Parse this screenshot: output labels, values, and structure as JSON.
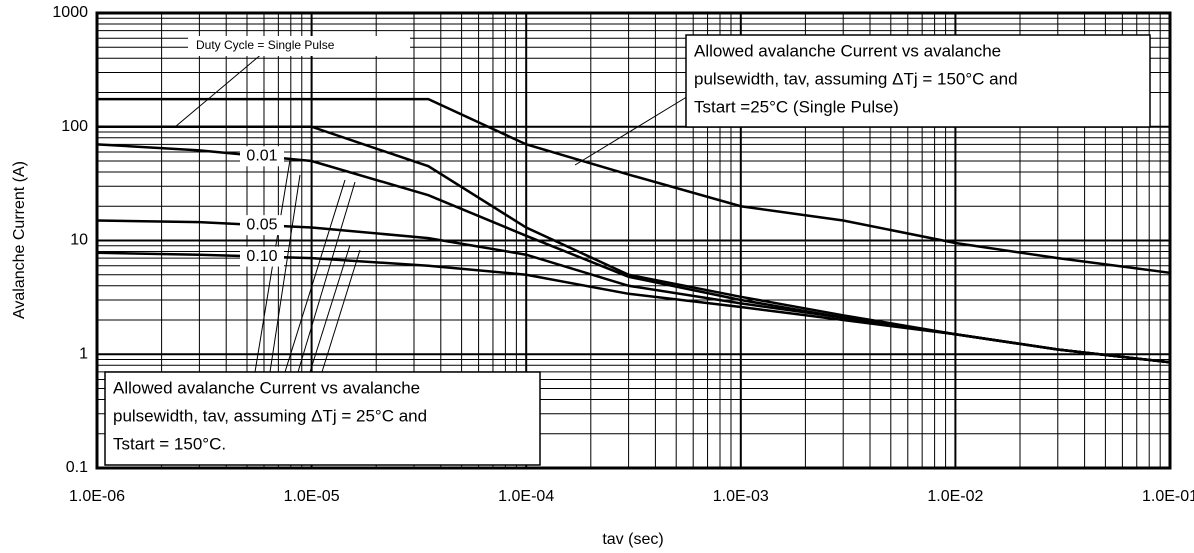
{
  "chart_data": {
    "type": "line",
    "xlabel": "tav (sec)",
    "ylabel": "Avalanche Current (A)",
    "log_x": true,
    "log_y": true,
    "grid": true,
    "xlim": [
      1e-06,
      0.1
    ],
    "ylim": [
      0.1,
      1000
    ],
    "xticks": [
      {
        "value": 1e-06,
        "label": "1.0E-06"
      },
      {
        "value": 1e-05,
        "label": "1.0E-05"
      },
      {
        "value": 0.0001,
        "label": "1.0E-04"
      },
      {
        "value": 0.001,
        "label": "1.0E-03"
      },
      {
        "value": 0.01,
        "label": "1.0E-02"
      },
      {
        "value": 0.1,
        "label": "1.0E-01"
      }
    ],
    "yticks": [
      1000,
      100,
      10,
      1,
      0.1
    ],
    "x": [
      1e-06,
      3e-06,
      1e-05,
      3.5e-05,
      0.0001,
      0.0003,
      0.001,
      0.003,
      0.01,
      0.03,
      0.1
    ],
    "series": [
      {
        "color": "#000000",
        "values": [
          175,
          175,
          175,
          175,
          70,
          38,
          20,
          15,
          9.5,
          7,
          5.2
        ]
      },
      {
        "color": "#000000",
        "values": [
          100,
          100,
          100,
          45,
          13,
          5,
          3.2,
          2.2,
          1.5,
          1.1,
          0.85
        ]
      },
      {
        "name": "0.01",
        "color": "#000000",
        "values": [
          70,
          62,
          50,
          25,
          11,
          4.8,
          3,
          2.1,
          1.5,
          1.1,
          0.85
        ]
      },
      {
        "name": "0.05",
        "color": "#000000",
        "values": [
          15,
          14.5,
          13,
          10.5,
          7.5,
          4,
          2.8,
          2.1,
          1.5,
          1.1,
          0.85
        ]
      },
      {
        "name": "0.10",
        "color": "#000000",
        "values": [
          7.8,
          7.5,
          7,
          6,
          5,
          3.4,
          2.6,
          2,
          1.5,
          1.1,
          0.85
        ]
      }
    ],
    "annotations": [
      {
        "lines": [
          "Duty Cycle = Single Pulse"
        ]
      },
      {
        "lines": [
          "Allowed avalanche Current vs avalanche",
          "pulsewidth, tav, assuming ΔTj = 150°C and",
          "Tstart =25°C (Single Pulse)"
        ]
      },
      {
        "lines": [
          "Allowed avalanche Current vs avalanche",
          "pulsewidth, tav, assuming ΔTj = 25°C and",
          "Tstart = 150°C."
        ]
      }
    ]
  }
}
